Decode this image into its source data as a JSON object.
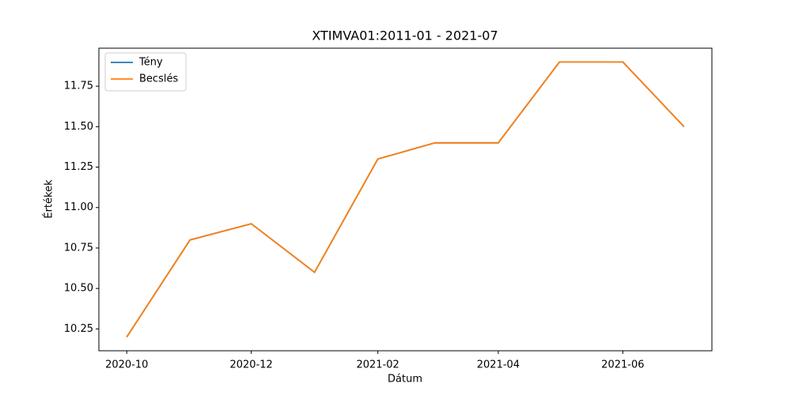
{
  "chart_data": {
    "type": "line",
    "title": "XTIMVA01:2011-01 - 2021-07",
    "x_label": "Dátum",
    "y_label": "Értékek",
    "x": [
      "2020-10",
      "2020-11",
      "2020-12",
      "2021-01",
      "2021-02",
      "2021-03",
      "2021-04",
      "2021-05",
      "2021-06",
      "2021-07"
    ],
    "xticks": [
      "2020-10",
      "2020-12",
      "2021-02",
      "2021-04",
      "2021-06"
    ],
    "series": [
      {
        "name": "Tény",
        "color": "#1f77b4",
        "values": [
          10.2,
          10.8,
          10.9,
          10.6,
          11.3,
          11.4,
          11.4,
          11.9,
          11.9,
          11.5
        ]
      },
      {
        "name": "Becslés",
        "color": "#ff7f0e",
        "values": [
          10.2,
          10.8,
          10.9,
          10.6,
          11.3,
          11.4,
          11.4,
          11.9,
          11.9,
          11.5
        ]
      }
    ],
    "ylim": [
      10.115,
      11.985
    ],
    "yticks": [
      10.25,
      {
        "value": 10.5,
        "label": "10.50"
      },
      10.75,
      {
        "value": 11,
        "label": "11.00"
      },
      11.25,
      {
        "value": 11.5,
        "label": "11.50"
      },
      11.75
    ],
    "grid": false,
    "legend": "upper left"
  }
}
